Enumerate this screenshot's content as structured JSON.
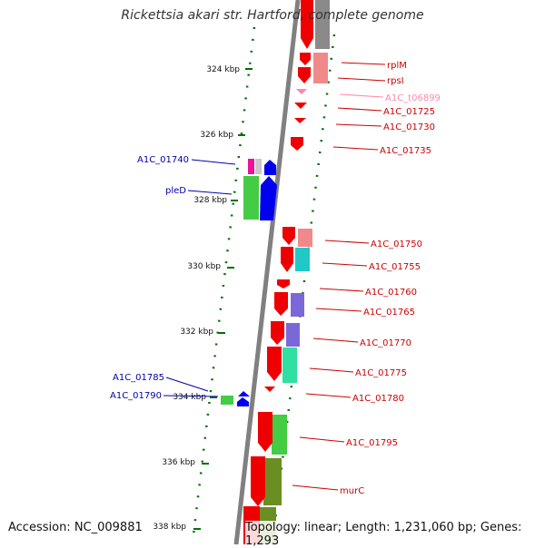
{
  "title": "Rickettsia akari str. Hartford, complete genome",
  "accession": "Accession: NC_009881",
  "summary": "Topology: linear; Length: 1,231,060 bp; Genes: 1,293",
  "colors": {
    "backbone": "#808080",
    "tick": "#007000",
    "left_label": "#0000aa",
    "right_label": "#cc0000",
    "trna_label": "#ff88aa"
  },
  "ticks": [
    {
      "kbp": 324,
      "label": "324 kbp"
    },
    {
      "kbp": 326,
      "label": "326 kbp"
    },
    {
      "kbp": 328,
      "label": "328 kbp"
    },
    {
      "kbp": 330,
      "label": "330 kbp"
    },
    {
      "kbp": 332,
      "label": "332 kbp"
    },
    {
      "kbp": 334,
      "label": "334 kbp"
    },
    {
      "kbp": 336,
      "label": "336 kbp"
    },
    {
      "kbp": 338,
      "label": "338 kbp"
    }
  ],
  "left_labels": [
    {
      "text": "A1C_01740"
    },
    {
      "text": "pleD"
    },
    {
      "text": "A1C_01785"
    },
    {
      "text": "A1C_01790"
    }
  ],
  "right_labels": [
    {
      "text": "rplM"
    },
    {
      "text": "rpsI"
    },
    {
      "text": "A1C_t06899",
      "kind": "trna"
    },
    {
      "text": "A1C_01725"
    },
    {
      "text": "A1C_01730"
    },
    {
      "text": "A1C_01735"
    },
    {
      "text": "A1C_01750"
    },
    {
      "text": "A1C_01755"
    },
    {
      "text": "A1C_01760"
    },
    {
      "text": "A1C_01765"
    },
    {
      "text": "A1C_01770"
    },
    {
      "text": "A1C_01775"
    },
    {
      "text": "A1C_01780"
    },
    {
      "text": "A1C_01795"
    },
    {
      "text": "murC"
    }
  ]
}
